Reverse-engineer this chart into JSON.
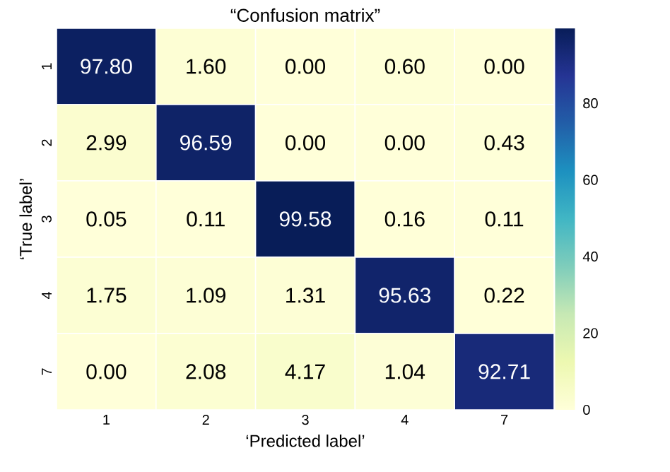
{
  "chart_data": {
    "type": "heatmap",
    "title": "“Confusion matrix”",
    "xlabel": "‘Predicted label’",
    "ylabel": "‘True label’",
    "categories": [
      "1",
      "2",
      "3",
      "4",
      "7"
    ],
    "y_categories": [
      "1",
      "2",
      "3",
      "4",
      "7"
    ],
    "cells": [
      [
        97.8,
        1.6,
        0,
        0.6,
        0
      ],
      [
        2.99,
        96.59,
        0,
        0,
        0.43
      ],
      [
        0.05,
        0.11,
        99.58,
        0.16,
        0.11
      ],
      [
        1.75,
        1.09,
        1.31,
        95.63,
        0.22
      ],
      [
        0,
        2.08,
        4.17,
        1.04,
        92.71
      ]
    ],
    "cell_labels": [
      [
        "97.80",
        "1.60",
        "0.00",
        "0.60",
        "0.00"
      ],
      [
        "2.99",
        "96.59",
        "0.00",
        "0.00",
        "0.43"
      ],
      [
        "0.05",
        "0.11",
        "99.58",
        "0.16",
        "0.11"
      ],
      [
        "1.75",
        "1.09",
        "1.31",
        "95.63",
        "0.22"
      ],
      [
        "0.00",
        "2.08",
        "4.17",
        "1.04",
        "92.71"
      ]
    ],
    "clim": [
      0,
      99.58
    ],
    "cticks": [
      0,
      20,
      40,
      60,
      80
    ]
  }
}
